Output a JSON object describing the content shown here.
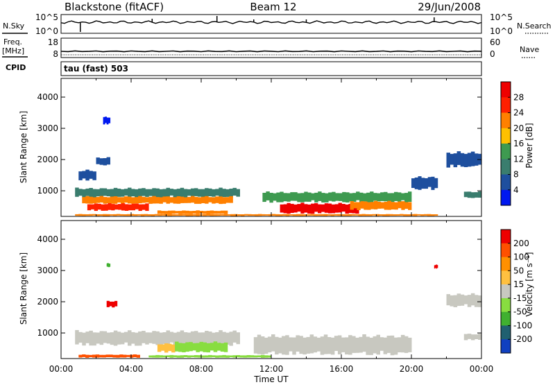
{
  "header": {
    "station": "Blackstone (fitACF)",
    "beam": "Beam 12",
    "date": "29/Jun/2008"
  },
  "side_labels": {
    "nsky": "N.Sky",
    "freq_line1": "Freq.",
    "freq_line2": "[MHz]",
    "cpid": "CPID",
    "nsearch": "N.Search",
    "nave": "Nave"
  },
  "panels": {
    "nsky_ticks": [
      "10^5",
      "10^0"
    ],
    "nsearch_ticks": [
      "10^5",
      "10^0"
    ],
    "freq_ticks": [
      "18",
      "8"
    ],
    "nave_ticks": [
      "60",
      "0"
    ],
    "cpid_text": "tau (fast) 503"
  },
  "axes": {
    "ylabel": "Slant Range [km]",
    "xlabel": "Time UT",
    "y_ticks": [
      "4000",
      "3000",
      "2000",
      "1000"
    ],
    "x_ticks": [
      "00:00",
      "04:00",
      "08:00",
      "12:00",
      "16:00",
      "20:00",
      "00:00"
    ]
  },
  "chart_data": [
    {
      "type": "heatmap",
      "name": "power",
      "ylabel": "Slant Range [km]",
      "xlabel": "Time UT",
      "x_range_hours": [
        0,
        24
      ],
      "y_range_km": [
        180,
        4600
      ],
      "colorbar": {
        "label": "Power [dB]",
        "ticks": [
          "28",
          "24",
          "20",
          "16",
          "12",
          "8",
          "4"
        ],
        "colors": [
          "#0018f0",
          "#1e4f9e",
          "#3a7d6e",
          "#3e9a50",
          "#ffc000",
          "#ff8000",
          "#ff2000",
          "#ee0000"
        ]
      },
      "regions": [
        {
          "t0": 0.8,
          "t1": 10.2,
          "r0": 760,
          "r1": 1120,
          "level": 2
        },
        {
          "t0": 1.2,
          "t1": 9.8,
          "r0": 560,
          "r1": 850,
          "level": 5
        },
        {
          "t0": 1.5,
          "t1": 5.0,
          "r0": 340,
          "r1": 620,
          "level": 6
        },
        {
          "t0": 5.5,
          "t1": 9.5,
          "r0": 240,
          "r1": 380,
          "level": 5
        },
        {
          "t0": 11.5,
          "t1": 20.0,
          "r0": 600,
          "r1": 1000,
          "level": 3
        },
        {
          "t0": 12.5,
          "t1": 17.0,
          "r0": 240,
          "r1": 640,
          "level": 7
        },
        {
          "t0": 16.5,
          "t1": 20.0,
          "r0": 360,
          "r1": 700,
          "level": 5
        },
        {
          "t0": 0.8,
          "t1": 21.5,
          "r0": 190,
          "r1": 260,
          "level": 5
        },
        {
          "t0": 1.0,
          "t1": 2.0,
          "r0": 1300,
          "r1": 1700,
          "level": 1
        },
        {
          "t0": 2.0,
          "t1": 2.8,
          "r0": 1800,
          "r1": 2100,
          "level": 1
        },
        {
          "t0": 2.4,
          "t1": 2.8,
          "r0": 3100,
          "r1": 3400,
          "level": 0
        },
        {
          "t0": 20.0,
          "t1": 21.5,
          "r0": 1000,
          "r1": 1500,
          "level": 1
        },
        {
          "t0": 22.0,
          "t1": 24.0,
          "r0": 1700,
          "r1": 2300,
          "level": 1
        },
        {
          "t0": 23.0,
          "t1": 24.0,
          "r0": 750,
          "r1": 1000,
          "level": 2
        }
      ]
    },
    {
      "type": "heatmap",
      "name": "velocity",
      "ylabel": "Slant Range [km]",
      "xlabel": "Time UT",
      "x_range_hours": [
        0,
        24
      ],
      "y_range_km": [
        180,
        4600
      ],
      "colorbar": {
        "label": "Velocity [m s⁻¹]",
        "ticks": [
          "200",
          "100",
          "50",
          "15",
          "-15",
          "-50",
          "-100",
          "-200"
        ],
        "colors": [
          "#ee0000",
          "#ff5000",
          "#ff9000",
          "#ffc040",
          "#c8c8c0",
          "#88dd40",
          "#40b030",
          "#206070",
          "#1040c0"
        ]
      },
      "regions": [
        {
          "t0": 0.8,
          "t1": 10.2,
          "r0": 560,
          "r1": 1120,
          "level": 4
        },
        {
          "t0": 11.0,
          "t1": 20.0,
          "r0": 240,
          "r1": 1000,
          "level": 4
        },
        {
          "t0": 5.5,
          "t1": 6.5,
          "r0": 350,
          "r1": 700,
          "level": 3
        },
        {
          "t0": 6.5,
          "t1": 9.5,
          "r0": 350,
          "r1": 750,
          "level": 5
        },
        {
          "t0": 1.0,
          "t1": 4.5,
          "r0": 200,
          "r1": 320,
          "level": 1
        },
        {
          "t0": 5.0,
          "t1": 12.0,
          "r0": 200,
          "r1": 300,
          "level": 5
        },
        {
          "t0": 2.6,
          "t1": 3.2,
          "r0": 1800,
          "r1": 2050,
          "level": 0
        },
        {
          "t0": 2.6,
          "t1": 2.8,
          "r0": 3100,
          "r1": 3250,
          "level": 6
        },
        {
          "t0": 21.3,
          "t1": 21.5,
          "r0": 3050,
          "r1": 3200,
          "level": 0
        },
        {
          "t0": 22.0,
          "t1": 24.0,
          "r0": 1800,
          "r1": 2300,
          "level": 4
        },
        {
          "t0": 23.0,
          "t1": 24.0,
          "r0": 750,
          "r1": 1000,
          "level": 4
        }
      ]
    }
  ]
}
